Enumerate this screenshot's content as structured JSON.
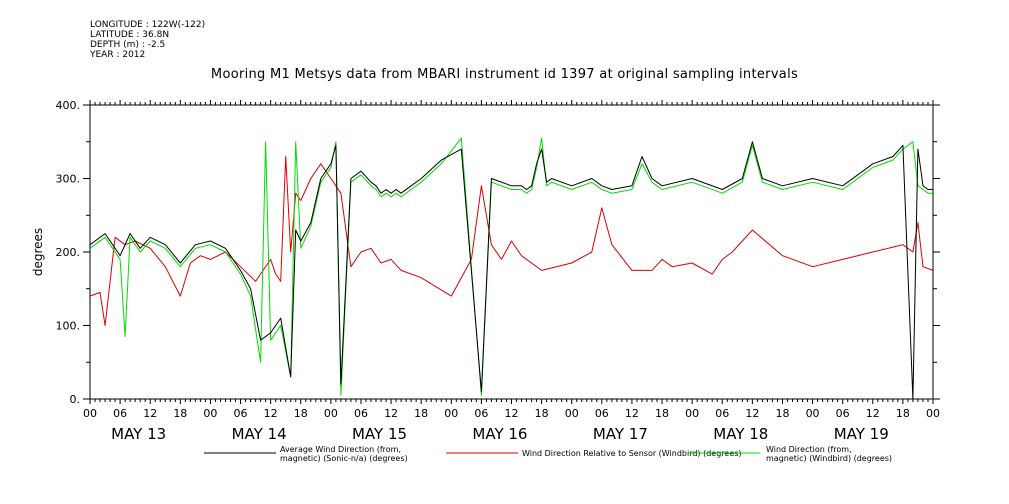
{
  "meta": {
    "longitude": "LONGITUDE : 122W(-122)",
    "latitude": "LATITUDE : 36.8N",
    "depth": "DEPTH (m) : -2.5",
    "year": "YEAR : 2012"
  },
  "chart_data": {
    "type": "line",
    "title": "Mooring M1 Metsys data from MBARI instrument id 1397 at original sampling intervals",
    "ylabel": "degrees",
    "xlabel": "",
    "ylim": [
      0,
      400
    ],
    "y_ticks": [
      "0.",
      "100.",
      "200.",
      "300.",
      "400."
    ],
    "xlim_hours": [
      0,
      168
    ],
    "hour_ticks": [
      "00",
      "06",
      "12",
      "18",
      "00",
      "06",
      "12",
      "18",
      "00",
      "06",
      "12",
      "18",
      "00",
      "06",
      "12",
      "18",
      "00",
      "06",
      "12",
      "18",
      "00",
      "06",
      "12",
      "18",
      "00",
      "06",
      "12",
      "18",
      "00"
    ],
    "day_labels": [
      "MAY 13",
      "MAY 14",
      "MAY 15",
      "MAY 16",
      "MAY 17",
      "MAY 18",
      "MAY 19"
    ],
    "grid": false,
    "legend_position": "bottom",
    "colors": {
      "black": "#000000",
      "red": "#dd0000",
      "green": "#00dd00"
    },
    "series": [
      {
        "name": "Average Wind Direction (from, magnetic) (Sonic-n/a) (degrees)",
        "legend_lines": [
          "Average Wind Direction (from,",
          "magnetic) (Sonic-n/a) (degrees)"
        ],
        "color": "#000000",
        "x": [
          0,
          3,
          6,
          8,
          10,
          12,
          15,
          18,
          21,
          24,
          27,
          30,
          32,
          34,
          36,
          38,
          40,
          41,
          42,
          44,
          46,
          48,
          49,
          50,
          52,
          54,
          56,
          57,
          58,
          59,
          60,
          61,
          62,
          64,
          66,
          70,
          74,
          78,
          80,
          84,
          86,
          87,
          88,
          89,
          90,
          91,
          92,
          96,
          100,
          102,
          104,
          108,
          110,
          112,
          114,
          120,
          126,
          130,
          132,
          134,
          138,
          144,
          150,
          156,
          160,
          162,
          164,
          165,
          166,
          167,
          168
        ],
        "y": [
          210,
          225,
          195,
          225,
          205,
          220,
          210,
          185,
          210,
          215,
          205,
          175,
          150,
          80,
          90,
          110,
          30,
          230,
          215,
          240,
          300,
          320,
          345,
          20,
          300,
          310,
          295,
          290,
          280,
          285,
          280,
          285,
          280,
          290,
          300,
          325,
          340,
          10,
          300,
          290,
          290,
          285,
          290,
          320,
          340,
          295,
          300,
          290,
          300,
          290,
          285,
          290,
          330,
          300,
          290,
          300,
          285,
          300,
          350,
          300,
          290,
          300,
          290,
          320,
          330,
          345,
          0,
          340,
          290,
          285,
          285
        ]
      },
      {
        "name": "Wind Direction Relative to Sensor (Windbird) (degrees)",
        "legend_lines": [
          "Wind Direction Relative to Sensor (Windbird) (degrees)"
        ],
        "color": "#dd0000",
        "x": [
          0,
          2,
          3,
          5,
          7,
          9,
          12,
          15,
          18,
          20,
          22,
          24,
          27,
          30,
          33,
          35,
          36,
          37,
          38,
          39,
          40,
          41,
          42,
          44,
          46,
          48,
          50,
          52,
          54,
          56,
          58,
          60,
          62,
          66,
          72,
          76,
          78,
          80,
          82,
          84,
          86,
          90,
          96,
          100,
          102,
          104,
          108,
          112,
          114,
          116,
          120,
          124,
          126,
          128,
          132,
          138,
          144,
          150,
          156,
          162,
          164,
          165,
          166,
          168
        ],
        "y": [
          140,
          145,
          100,
          220,
          210,
          215,
          205,
          180,
          140,
          185,
          195,
          190,
          200,
          180,
          160,
          180,
          190,
          170,
          160,
          330,
          200,
          280,
          270,
          300,
          320,
          300,
          280,
          180,
          200,
          205,
          185,
          190,
          175,
          165,
          140,
          190,
          290,
          210,
          190,
          215,
          195,
          175,
          185,
          200,
          260,
          210,
          175,
          175,
          190,
          180,
          185,
          170,
          190,
          200,
          230,
          195,
          180,
          190,
          200,
          210,
          200,
          240,
          180,
          175
        ]
      },
      {
        "name": "Wind Direction (from, magnetic) (Windbird) (degrees)",
        "legend_lines": [
          "Wind Direction (from,",
          "magnetic) (Windbird) (degrees)"
        ],
        "color": "#00dd00",
        "x": [
          0,
          3,
          6,
          7,
          8,
          10,
          12,
          15,
          18,
          21,
          24,
          27,
          30,
          32,
          34,
          35,
          36,
          38,
          40,
          41,
          42,
          44,
          46,
          48,
          49,
          50,
          52,
          54,
          56,
          57,
          58,
          59,
          60,
          61,
          62,
          64,
          66,
          70,
          74,
          78,
          80,
          84,
          86,
          87,
          88,
          89,
          90,
          91,
          92,
          96,
          100,
          102,
          104,
          108,
          110,
          112,
          114,
          120,
          126,
          130,
          132,
          134,
          138,
          144,
          150,
          156,
          160,
          162,
          164,
          165,
          166,
          167,
          168
        ],
        "y": [
          205,
          220,
          190,
          85,
          220,
          200,
          215,
          205,
          180,
          205,
          210,
          200,
          170,
          140,
          50,
          350,
          80,
          100,
          30,
          350,
          205,
          235,
          295,
          315,
          350,
          5,
          295,
          305,
          290,
          285,
          275,
          280,
          275,
          280,
          275,
          285,
          295,
          320,
          355,
          5,
          295,
          285,
          285,
          280,
          285,
          315,
          355,
          290,
          295,
          285,
          295,
          285,
          280,
          285,
          320,
          295,
          285,
          295,
          280,
          295,
          345,
          295,
          285,
          295,
          285,
          315,
          325,
          340,
          350,
          290,
          285,
          280,
          280
        ]
      }
    ]
  }
}
